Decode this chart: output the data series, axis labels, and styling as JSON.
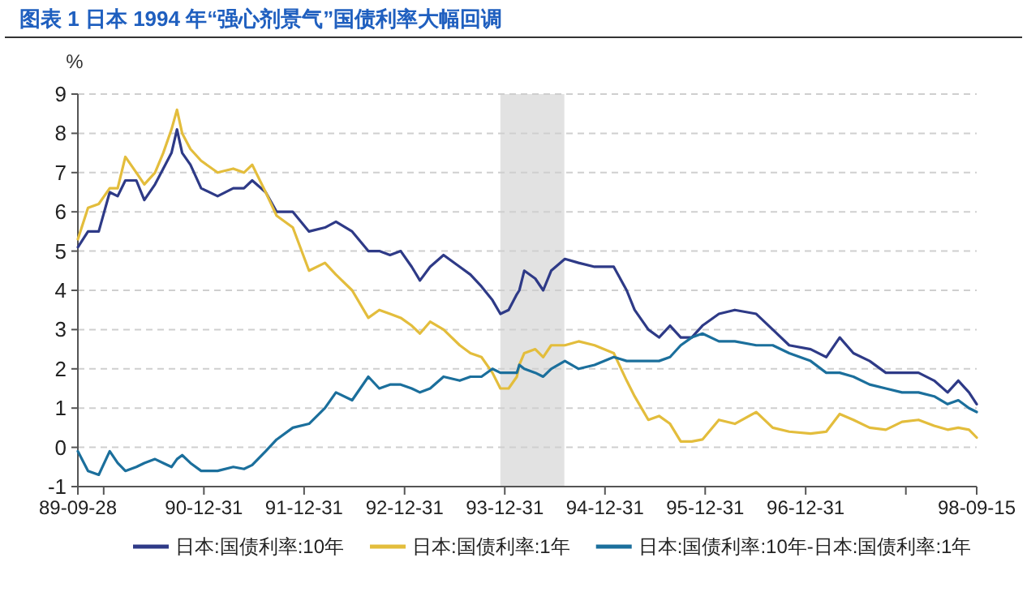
{
  "chart_data": {
    "type": "line",
    "title": "图表 1 日本 1994 年“强心剂景气”国债利率大幅回调",
    "ylabel": "%",
    "x": [
      "1989-09-28",
      "1989-11-04",
      "1989-12-13",
      "1990-01-22",
      "1990-02-20",
      "1990-03-20",
      "1990-04-29",
      "1990-05-28",
      "1990-07-06",
      "1990-08-05",
      "1990-09-04",
      "1990-09-24",
      "1990-10-13",
      "1990-11-12",
      "1990-12-21",
      "1991-02-19",
      "1991-04-17",
      "1991-05-26",
      "1991-06-25",
      "1991-08-13",
      "1991-09-22",
      "1991-11-20",
      "1992-01-18",
      "1992-03-16",
      "1992-04-25",
      "1992-06-23",
      "1992-08-21",
      "1992-09-30",
      "1992-11-08",
      "1992-12-17",
      "1993-01-26",
      "1993-02-25",
      "1993-04-03",
      "1993-05-22",
      "1993-07-20",
      "1993-08-28",
      "1993-10-07",
      "1993-11-16",
      "1993-12-15",
      "1994-01-14",
      "1994-02-13",
      "1994-02-22",
      "1994-03-12",
      "1994-04-21",
      "1994-05-20",
      "1994-06-18",
      "1994-08-07",
      "1994-09-26",
      "1994-11-23",
      "1995-02-01",
      "1995-03-20",
      "1995-04-18",
      "1995-06-07",
      "1995-07-16",
      "1995-08-25",
      "1995-10-03",
      "1995-11-12",
      "1995-12-21",
      "1996-02-19",
      "1996-04-17",
      "1996-07-04",
      "1996-09-02",
      "1996-11-01",
      "1997-01-18",
      "1997-03-16",
      "1997-05-04",
      "1997-06-23",
      "1997-08-21",
      "1997-10-19",
      "1997-12-17",
      "1998-02-15",
      "1998-04-13",
      "1998-06-01",
      "1998-07-10",
      "1998-08-18",
      "1998-09-15"
    ],
    "series": [
      {
        "name": "日本:国债利率:10年",
        "color": "#2e3a87",
        "values": [
          5.1,
          5.5,
          5.5,
          6.5,
          6.4,
          6.8,
          6.8,
          6.3,
          6.7,
          7.1,
          7.5,
          8.1,
          7.5,
          7.2,
          6.6,
          6.4,
          6.6,
          6.6,
          6.8,
          6.5,
          6.0,
          6.0,
          5.5,
          5.6,
          5.75,
          5.5,
          5.0,
          5.0,
          4.9,
          5.0,
          4.6,
          4.25,
          4.6,
          4.9,
          4.6,
          4.4,
          4.1,
          3.75,
          3.4,
          3.5,
          3.9,
          4.0,
          4.5,
          4.3,
          4.0,
          4.5,
          4.8,
          4.7,
          4.6,
          4.6,
          4.0,
          3.5,
          3.0,
          2.8,
          3.1,
          2.8,
          2.8,
          3.1,
          3.4,
          3.5,
          3.4,
          3.0,
          2.6,
          2.5,
          2.3,
          2.8,
          2.4,
          2.2,
          1.9,
          1.9,
          1.9,
          1.7,
          1.4,
          1.7,
          1.4,
          1.1
        ]
      },
      {
        "name": "日本:国债利率:1年",
        "color": "#e3bd3c",
        "values": [
          5.3,
          6.1,
          6.2,
          6.6,
          6.6,
          7.4,
          7.0,
          6.7,
          7.0,
          7.5,
          8.1,
          8.6,
          8.0,
          7.6,
          7.3,
          7.0,
          7.1,
          7.0,
          7.2,
          6.5,
          5.9,
          5.6,
          4.5,
          4.7,
          4.4,
          4.0,
          3.3,
          3.5,
          3.4,
          3.3,
          3.1,
          2.9,
          3.2,
          3.0,
          2.6,
          2.4,
          2.3,
          1.9,
          1.5,
          1.5,
          1.8,
          2.1,
          2.4,
          2.5,
          2.3,
          2.6,
          2.6,
          2.7,
          2.6,
          2.4,
          1.7,
          1.3,
          0.7,
          0.8,
          0.6,
          0.15,
          0.15,
          0.2,
          0.7,
          0.6,
          0.9,
          0.5,
          0.4,
          0.35,
          0.4,
          0.85,
          0.7,
          0.5,
          0.45,
          0.65,
          0.7,
          0.55,
          0.45,
          0.5,
          0.45,
          0.25
        ]
      },
      {
        "name": "日本:国债利率:10年-日本:国债利率:1年",
        "color": "#1b6f9c",
        "values": [
          -0.1,
          -0.6,
          -0.7,
          -0.1,
          -0.4,
          -0.6,
          -0.5,
          -0.4,
          -0.3,
          -0.4,
          -0.5,
          -0.3,
          -0.2,
          -0.4,
          -0.6,
          -0.6,
          -0.5,
          -0.55,
          -0.45,
          -0.1,
          0.2,
          0.5,
          0.6,
          1.0,
          1.4,
          1.2,
          1.8,
          1.5,
          1.6,
          1.6,
          1.5,
          1.4,
          1.5,
          1.8,
          1.7,
          1.8,
          1.8,
          2.0,
          1.9,
          1.9,
          1.9,
          2.1,
          2.0,
          1.9,
          1.8,
          2.0,
          2.2,
          2.0,
          2.1,
          2.3,
          2.2,
          2.2,
          2.2,
          2.2,
          2.3,
          2.6,
          2.8,
          2.9,
          2.7,
          2.7,
          2.6,
          2.6,
          2.4,
          2.2,
          1.9,
          1.9,
          1.8,
          1.6,
          1.5,
          1.4,
          1.4,
          1.3,
          1.1,
          1.2,
          1.0,
          0.9
        ]
      }
    ],
    "xlim": [
      "1989-09-28",
      "1998-09-15"
    ],
    "xticks": [
      {
        "value": "1989-09-28",
        "label": "89-09-28"
      },
      {
        "value": "1989-12-31",
        "label": null
      },
      {
        "value": "1990-12-31",
        "label": "90-12-31"
      },
      {
        "value": "1991-12-31",
        "label": "91-12-31"
      },
      {
        "value": "1992-12-31",
        "label": "92-12-31"
      },
      {
        "value": "1993-12-31",
        "label": "93-12-31"
      },
      {
        "value": "1994-12-31",
        "label": "94-12-31"
      },
      {
        "value": "1995-12-31",
        "label": "95-12-31"
      },
      {
        "value": "1996-12-31",
        "label": "96-12-31"
      },
      {
        "value": "1997-12-31",
        "label": null
      },
      {
        "value": "1998-09-15",
        "label": "98-09-15"
      }
    ],
    "ylim": [
      -1,
      9
    ],
    "yticks": [
      -1,
      0,
      1,
      2,
      3,
      4,
      5,
      6,
      7,
      8,
      9
    ],
    "bands": [
      {
        "axis": "x",
        "from": "1993-12-15",
        "to": "1994-08-05",
        "color": "#e2e2e2"
      }
    ],
    "grid": "y",
    "legend": "bottom",
    "line_style": "solid",
    "marker": "none"
  }
}
